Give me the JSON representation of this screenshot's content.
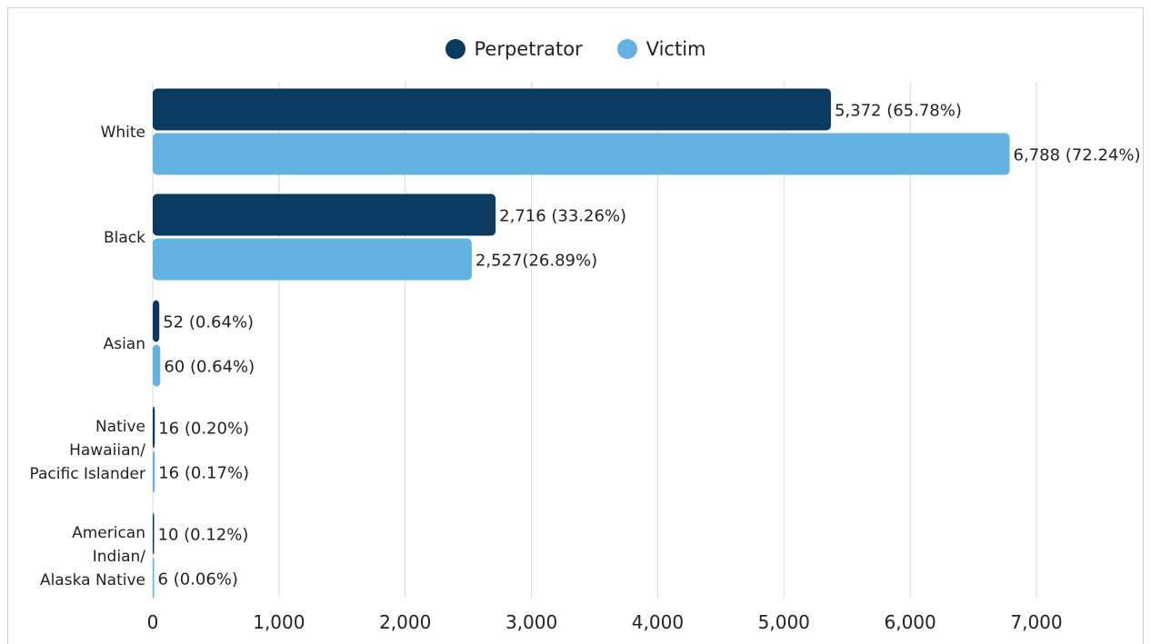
{
  "chart_data": {
    "type": "bar",
    "orientation": "horizontal",
    "categories": [
      [
        "White"
      ],
      [
        "Black"
      ],
      [
        "Asian"
      ],
      [
        "Native",
        "Hawaiian/",
        "Pacific Islander"
      ],
      [
        "American",
        "Indian/",
        "Alaska Native"
      ]
    ],
    "series": [
      {
        "name": "Perpetrator",
        "color": "#0b3a60",
        "values": [
          5372,
          2716,
          52,
          16,
          10
        ],
        "labels": [
          "5,372 (65.78%)",
          "2,716 (33.26%)",
          "52 (0.64%)",
          "16 (0.20%)",
          "10 (0.12%)"
        ]
      },
      {
        "name": "Victim",
        "color": "#62b3e2",
        "values": [
          6788,
          2527,
          60,
          16,
          6
        ],
        "labels": [
          "6,788 (72.24%)",
          "2,527(26.89%)",
          "60 (0.64%)",
          "16 (0.17%)",
          "6 (0.06%)"
        ]
      }
    ],
    "xlim": [
      0,
      7000
    ],
    "xticks": [
      0,
      1000,
      2000,
      3000,
      4000,
      5000,
      6000,
      7000
    ],
    "xtick_labels": [
      "0",
      "1,000",
      "2,000",
      "3,000",
      "4,000",
      "5,000",
      "6,000",
      "7,000"
    ],
    "grid": true,
    "legend_position": "top-center"
  }
}
